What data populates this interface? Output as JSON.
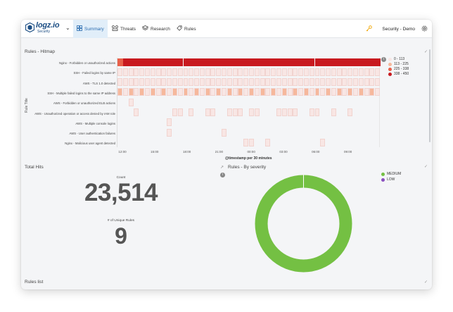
{
  "nav": {
    "logo_word": "logz.io",
    "logo_sub": "Security",
    "tabs": [
      {
        "label": "Summary",
        "icon": "grid-icon",
        "active": true
      },
      {
        "label": "Threats",
        "icon": "threats-icon",
        "active": false
      },
      {
        "label": "Research",
        "icon": "layers-icon",
        "active": false
      },
      {
        "label": "Rules",
        "icon": "rules-icon",
        "active": false
      }
    ],
    "account": "Security - Demo"
  },
  "heatmap": {
    "title": "Rules - Hitmap",
    "y_axis_title": "Rule Title",
    "x_axis_title": "@timestamp per 30 minutes",
    "rows": [
      "Nginx - Forbidden or unauthorized actions",
      "SSH - Failed logins by same IP",
      "AWS - TLS 1.0 detected",
      "SSH - Multiple failed logins to the same IP address",
      "AWS - Forbidden or unauthorized ELB actions",
      "AWS - Unauthorized operation or access denied by IAM role",
      "AWS - Multiple console logins",
      "AWS - User authentication failures",
      "Nginx - Malicious user agent detected"
    ],
    "x_ticks": [
      "12:00",
      "15:00",
      "18:00",
      "21:00",
      "00:00",
      "03:00",
      "06:00",
      "09:00"
    ],
    "legend": [
      {
        "label": "0 - 113",
        "color": "#f8e6e4"
      },
      {
        "label": "113 - 225",
        "color": "#f6b89c"
      },
      {
        "label": "225 - 338",
        "color": "#e8604a"
      },
      {
        "label": "338 - 450",
        "color": "#c8191f"
      }
    ]
  },
  "total_hits": {
    "title": "Total Hits",
    "count_label": "Count",
    "count_value": "23,514",
    "unique_label": "# of Unique Rules",
    "unique_value": "9"
  },
  "severity": {
    "title": "Rules - By severity",
    "legend": [
      {
        "label": "MEDIUM",
        "color": "#74c043"
      },
      {
        "label": "LOW",
        "color": "#8a4fbf"
      }
    ],
    "values": {
      "MEDIUM": 0.995,
      "LOW": 0.005
    }
  },
  "rules_list": {
    "title": "Rules list"
  }
}
